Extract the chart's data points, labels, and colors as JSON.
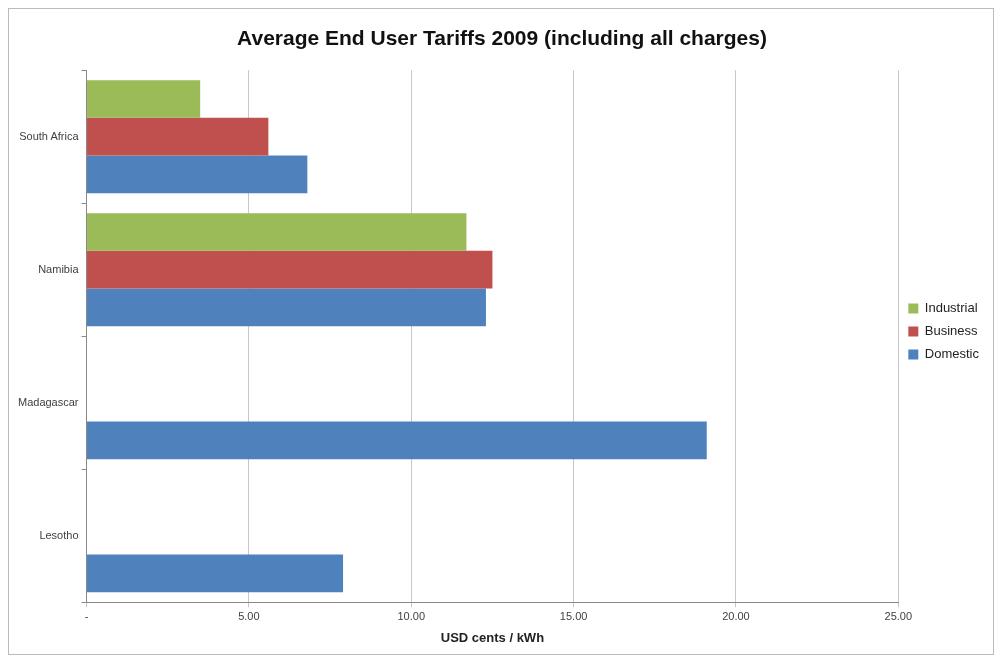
{
  "chart_data": {
    "type": "bar",
    "orientation": "horizontal",
    "title": "Average End User Tariffs 2009 (including all charges)",
    "xlabel": "USD cents / kWh",
    "categories": [
      "South Africa",
      "Namibia",
      "Madagascar",
      "Lesotho"
    ],
    "series": [
      {
        "name": "Industrial",
        "color": "#9bbb59",
        "values": [
          3.5,
          11.7,
          null,
          null
        ]
      },
      {
        "name": "Business",
        "color": "#c0504d",
        "values": [
          5.6,
          12.5,
          null,
          null
        ]
      },
      {
        "name": "Domestic",
        "color": "#4f81bd",
        "values": [
          6.8,
          12.3,
          19.1,
          7.9
        ]
      }
    ],
    "xlim": [
      0,
      25
    ],
    "xticks": [
      {
        "value": 0,
        "label": "-"
      },
      {
        "value": 5,
        "label": "5.00"
      },
      {
        "value": 10,
        "label": "10.00"
      },
      {
        "value": 15,
        "label": "15.00"
      },
      {
        "value": 20,
        "label": "20.00"
      },
      {
        "value": 25,
        "label": "25.00"
      }
    ],
    "grid": "x",
    "legend": "right"
  }
}
